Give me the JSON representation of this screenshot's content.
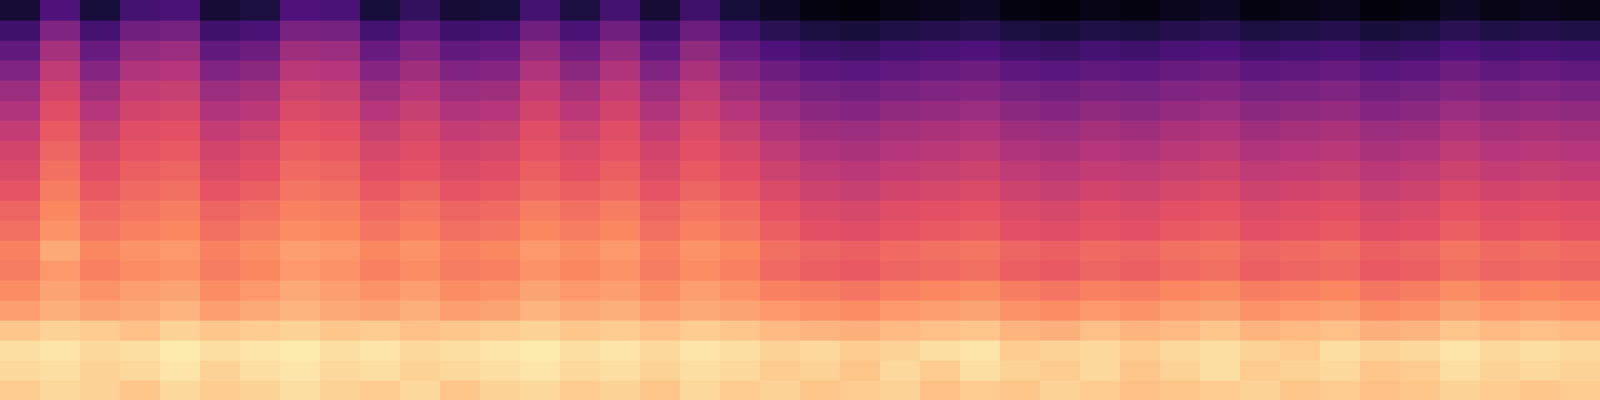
{
  "chart_data": {
    "type": "heatmap",
    "tick_labels": false,
    "grid": false,
    "xlim": [
      0,
      40
    ],
    "ylim": [
      0,
      20
    ],
    "color_range": [
      -80,
      0
    ],
    "cells": [
      [
        -8,
        -6,
        -7,
        -9,
        -6,
        -8,
        -7,
        -5,
        -7,
        -8,
        -6,
        -9,
        -7,
        -6,
        -8,
        -7,
        -9,
        -6,
        -8,
        -7,
        -9,
        -8,
        -7,
        -10,
        -8,
        -9,
        -7,
        -8,
        -10,
        -9,
        -8,
        -7,
        -9,
        -8,
        -10,
        -9,
        -7,
        -8,
        -9,
        -8
      ],
      [
        -6,
        -5,
        -7,
        -6,
        -4,
        -7,
        -5,
        -4,
        -6,
        -5,
        -7,
        -6,
        -5,
        -4,
        -6,
        -5,
        -7,
        -5,
        -6,
        -8,
        -7,
        -9,
        -6,
        -8,
        -5,
        -7,
        -8,
        -6,
        -9,
        -7,
        -5,
        -8,
        -7,
        -6,
        -9,
        -8,
        -5,
        -7,
        -6,
        -7
      ],
      [
        -5,
        -4,
        -6,
        -5,
        -3,
        -5,
        -4,
        -3,
        -5,
        -4,
        -6,
        -5,
        -4,
        -3,
        -5,
        -4,
        -6,
        -4,
        -5,
        -7,
        -6,
        -8,
        -7,
        -5,
        -4,
        -8,
        -7,
        -6,
        -8,
        -6,
        -5,
        -7,
        -8,
        -5,
        -7,
        -6,
        -4,
        -6,
        -5,
        -6
      ],
      [
        -9,
        -7,
        -8,
        -10,
        -7,
        -9,
        -8,
        -7,
        -9,
        -8,
        -10,
        -9,
        -8,
        -7,
        -9,
        -8,
        -10,
        -8,
        -9,
        -11,
        -12,
        -13,
        -11,
        -10,
        -9,
        -12,
        -13,
        -10,
        -12,
        -11,
        -9,
        -12,
        -11,
        -10,
        -13,
        -12,
        -9,
        -11,
        -10,
        -11
      ],
      [
        -16,
        -13,
        -15,
        -14,
        -12,
        -16,
        -14,
        -12,
        -14,
        -15,
        -13,
        -16,
        -15,
        -12,
        -14,
        -13,
        -16,
        -14,
        -15,
        -17,
        -18,
        -19,
        -17,
        -16,
        -15,
        -18,
        -19,
        -17,
        -18,
        -16,
        -15,
        -18,
        -17,
        -16,
        -19,
        -18,
        -15,
        -17,
        -16,
        -17
      ],
      [
        -19,
        -15,
        -18,
        -16,
        -15,
        -19,
        -17,
        -14,
        -16,
        -18,
        -16,
        -19,
        -18,
        -15,
        -17,
        -16,
        -19,
        -16,
        -18,
        -21,
        -22,
        -23,
        -21,
        -20,
        -19,
        -22,
        -23,
        -21,
        -22,
        -20,
        -19,
        -22,
        -21,
        -20,
        -23,
        -22,
        -19,
        -21,
        -20,
        -21
      ],
      [
        -22,
        -17,
        -21,
        -19,
        -18,
        -22,
        -20,
        -17,
        -18,
        -21,
        -19,
        -22,
        -21,
        -18,
        -20,
        -18,
        -22,
        -19,
        -21,
        -25,
        -27,
        -28,
        -26,
        -25,
        -24,
        -27,
        -28,
        -26,
        -27,
        -25,
        -24,
        -27,
        -26,
        -25,
        -28,
        -27,
        -24,
        -26,
        -25,
        -26
      ],
      [
        -21,
        -14,
        -20,
        -18,
        -17,
        -21,
        -19,
        -16,
        -17,
        -20,
        -18,
        -21,
        -20,
        -17,
        -19,
        -17,
        -21,
        -18,
        -20,
        -24,
        -26,
        -27,
        -25,
        -24,
        -23,
        -26,
        -27,
        -25,
        -26,
        -24,
        -23,
        -26,
        -25,
        -24,
        -27,
        -26,
        -23,
        -25,
        -24,
        -25
      ],
      [
        -24,
        -18,
        -23,
        -21,
        -20,
        -24,
        -22,
        -19,
        -20,
        -23,
        -21,
        -24,
        -23,
        -20,
        -22,
        -20,
        -24,
        -21,
        -23,
        -27,
        -30,
        -31,
        -29,
        -28,
        -27,
        -30,
        -31,
        -29,
        -30,
        -28,
        -27,
        -30,
        -29,
        -28,
        -31,
        -30,
        -27,
        -29,
        -28,
        -29
      ],
      [
        -26,
        -20,
        -25,
        -23,
        -22,
        -26,
        -24,
        -21,
        -22,
        -25,
        -23,
        -26,
        -25,
        -22,
        -24,
        -22,
        -26,
        -23,
        -25,
        -29,
        -32,
        -33,
        -31,
        -30,
        -29,
        -32,
        -33,
        -31,
        -32,
        -30,
        -29,
        -32,
        -31,
        -30,
        -33,
        -32,
        -29,
        -31,
        -30,
        -31
      ],
      [
        -29,
        -22,
        -28,
        -25,
        -24,
        -29,
        -27,
        -23,
        -24,
        -28,
        -26,
        -29,
        -28,
        -25,
        -27,
        -25,
        -29,
        -26,
        -28,
        -32,
        -35,
        -36,
        -34,
        -33,
        -32,
        -35,
        -36,
        -34,
        -35,
        -33,
        -32,
        -35,
        -34,
        -33,
        -36,
        -35,
        -32,
        -34,
        -33,
        -34
      ],
      [
        -32,
        -24,
        -31,
        -27,
        -26,
        -32,
        -30,
        -25,
        -26,
        -31,
        -29,
        -32,
        -31,
        -27,
        -30,
        -27,
        -32,
        -28,
        -31,
        -35,
        -38,
        -39,
        -37,
        -36,
        -35,
        -38,
        -39,
        -37,
        -38,
        -36,
        -35,
        -38,
        -37,
        -36,
        -39,
        -38,
        -35,
        -37,
        -36,
        -37
      ],
      [
        -34,
        -26,
        -33,
        -29,
        -28,
        -34,
        -32,
        -27,
        -28,
        -33,
        -31,
        -34,
        -33,
        -29,
        -32,
        -29,
        -34,
        -30,
        -33,
        -38,
        -41,
        -42,
        -40,
        -39,
        -38,
        -41,
        -42,
        -40,
        -41,
        -39,
        -38,
        -41,
        -40,
        -39,
        -42,
        -41,
        -38,
        -40,
        -39,
        -40
      ],
      [
        -37,
        -28,
        -36,
        -31,
        -30,
        -37,
        -35,
        -29,
        -30,
        -36,
        -33,
        -37,
        -36,
        -31,
        -35,
        -31,
        -37,
        -32,
        -36,
        -41,
        -44,
        -45,
        -43,
        -42,
        -41,
        -44,
        -45,
        -43,
        -44,
        -42,
        -41,
        -44,
        -43,
        -42,
        -45,
        -44,
        -41,
        -43,
        -42,
        -43
      ],
      [
        -41,
        -31,
        -40,
        -34,
        -33,
        -41,
        -39,
        -32,
        -33,
        -40,
        -36,
        -41,
        -40,
        -34,
        -39,
        -34,
        -41,
        -35,
        -40,
        -45,
        -48,
        -49,
        -47,
        -46,
        -45,
        -48,
        -49,
        -47,
        -48,
        -46,
        -45,
        -48,
        -47,
        -46,
        -49,
        -48,
        -45,
        -47,
        -46,
        -47
      ],
      [
        -45,
        -34,
        -44,
        -37,
        -36,
        -45,
        -43,
        -35,
        -36,
        -44,
        -40,
        -45,
        -44,
        -37,
        -43,
        -37,
        -45,
        -38,
        -44,
        -49,
        -52,
        -53,
        -51,
        -50,
        -49,
        -52,
        -53,
        -51,
        -52,
        -50,
        -49,
        -52,
        -51,
        -50,
        -53,
        -52,
        -49,
        -51,
        -50,
        -51
      ],
      [
        -50,
        -38,
        -49,
        -41,
        -40,
        -50,
        -48,
        -39,
        -40,
        -49,
        -44,
        -50,
        -49,
        -41,
        -48,
        -41,
        -50,
        -42,
        -49,
        -54,
        -57,
        -58,
        -56,
        -55,
        -54,
        -57,
        -58,
        -56,
        -57,
        -55,
        -54,
        -57,
        -56,
        -55,
        -58,
        -57,
        -54,
        -56,
        -55,
        -56
      ],
      [
        -56,
        -43,
        -55,
        -46,
        -45,
        -56,
        -54,
        -44,
        -45,
        -55,
        -49,
        -56,
        -55,
        -46,
        -54,
        -46,
        -56,
        -47,
        -55,
        -60,
        -63,
        -64,
        -62,
        -61,
        -60,
        -63,
        -64,
        -62,
        -63,
        -61,
        -60,
        -63,
        -62,
        -61,
        -64,
        -63,
        -60,
        -62,
        -61,
        -62
      ],
      [
        -63,
        -50,
        -62,
        -53,
        -52,
        -63,
        -61,
        -51,
        -52,
        -62,
        -56,
        -63,
        -62,
        -53,
        -61,
        -53,
        -63,
        -54,
        -62,
        -67,
        -70,
        -71,
        -69,
        -68,
        -67,
        -70,
        -71,
        -69,
        -70,
        -68,
        -67,
        -70,
        -69,
        -68,
        -71,
        -70,
        -67,
        -69,
        -68,
        -69
      ],
      [
        -72,
        -60,
        -71,
        -62,
        -61,
        -72,
        -70,
        -60,
        -61,
        -71,
        -65,
        -72,
        -71,
        -62,
        -70,
        -62,
        -72,
        -63,
        -71,
        -75,
        -78,
        -79,
        -77,
        -76,
        -75,
        -78,
        -79,
        -77,
        -78,
        -76,
        -75,
        -78,
        -77,
        -76,
        -79,
        -78,
        -75,
        -77,
        -76,
        -77
      ]
    ]
  }
}
